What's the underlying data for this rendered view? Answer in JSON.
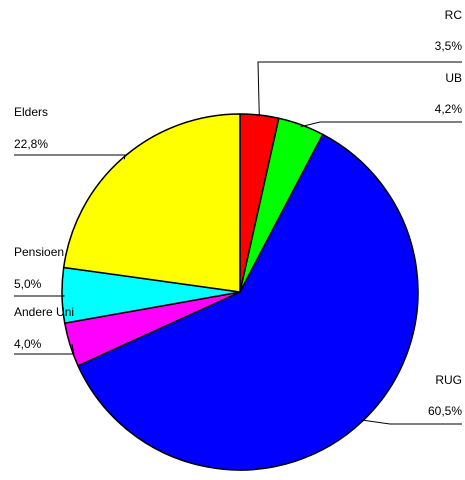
{
  "chart_data": {
    "type": "pie",
    "categories": [
      "RC",
      "UB",
      "RUG",
      "Andere Uni",
      "Pensioen",
      "Elders"
    ],
    "values": [
      3.5,
      4.2,
      60.5,
      4.0,
      5.0,
      22.8
    ],
    "value_labels": [
      "3,5%",
      "4,2%",
      "60,5%",
      "4,0%",
      "5,0%",
      "22,8%"
    ],
    "colors": [
      "#ff0000",
      "#00ff00",
      "#0000ff",
      "#ff00ff",
      "#00ffff",
      "#ffff00"
    ]
  }
}
